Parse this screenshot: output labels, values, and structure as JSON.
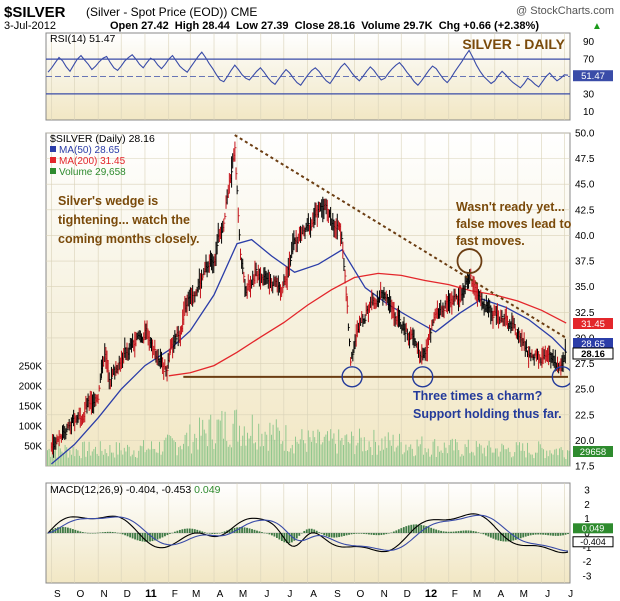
{
  "header": {
    "symbol": "$SILVER",
    "description": "(Silver - Spot Price (EOD))",
    "exchange": "CME",
    "copyright": "@ StockCharts.com",
    "date": "3-Jul-2012",
    "ohlc": "Open 27.42  High 28.44  Low 27.39  Close 28.16  Volume 29.7K  Chg +0.66 (+2.38%)",
    "ohlc_arrow": "▲"
  },
  "rsi_panel": {
    "label": "RSI(14) 51.47",
    "title": "SILVER - DAILY",
    "ticks": [
      10,
      30,
      50,
      70,
      90
    ],
    "current_label": "51.47",
    "current_value": 51.47,
    "overbought": 70,
    "oversold": 30,
    "values": [
      55,
      60,
      66,
      72,
      68,
      61,
      56,
      63,
      70,
      74,
      69,
      64,
      58,
      62,
      67,
      71,
      73,
      66,
      60,
      57,
      62,
      68,
      72,
      75,
      70,
      64,
      60,
      66,
      71,
      69,
      63,
      59,
      64,
      70,
      74,
      68,
      62,
      58,
      55,
      61,
      67,
      73,
      78,
      72,
      65,
      59,
      52,
      46,
      44,
      50,
      57,
      63,
      58,
      52,
      48,
      46,
      51,
      56,
      60,
      55,
      49,
      44,
      41,
      47,
      53,
      58,
      54,
      48,
      43,
      40,
      46,
      52,
      57,
      60,
      56,
      50,
      45,
      42,
      48,
      55,
      61,
      65,
      60,
      54,
      49,
      45,
      50,
      56,
      61,
      57,
      51,
      46,
      48,
      54,
      59,
      63,
      66,
      61,
      55,
      50,
      44,
      40,
      45,
      51,
      57,
      62,
      59,
      53,
      47,
      43,
      48,
      55,
      61,
      67,
      74,
      80,
      72,
      63,
      56,
      50,
      46,
      42,
      45,
      51,
      56,
      52,
      47,
      43,
      40,
      37,
      42,
      48,
      45,
      41,
      38,
      44,
      50,
      54,
      49,
      45,
      48,
      52,
      51.47
    ]
  },
  "price_panel": {
    "label": "$SILVER (Daily) 28.16",
    "legend": [
      {
        "text": "MA(50) 28.65",
        "color": "#2b3da8"
      },
      {
        "text": "MA(200) 31.45",
        "color": "#e3262b"
      },
      {
        "text": "Volume 29,658",
        "color": "#2e8b2e"
      }
    ],
    "price_ticks": [
      "50.0",
      "47.5",
      "45.0",
      "42.5",
      "40.0",
      "37.5",
      "35.0",
      "32.5",
      "30.0",
      "27.5",
      "25.0",
      "22.5",
      "20.0",
      "17.5"
    ],
    "volume_ticks": [
      "250K",
      "200K",
      "150K",
      "100K",
      "50K"
    ],
    "price_badges": [
      {
        "text": "31.45",
        "value": 31.45,
        "color": "#e3262b"
      },
      {
        "text": "28.65",
        "value": 28.65,
        "color": "#2b3da8"
      },
      {
        "text": "28.16",
        "value": 28.16,
        "color": "#000000"
      }
    ],
    "volume_badge": "29658",
    "annotations": {
      "wedge": [
        "Silver's wedge is",
        "tightening... watch the",
        "coming months closely."
      ],
      "false_moves": [
        "Wasn't ready yet...",
        "false moves lead to",
        "fast moves."
      ],
      "charm": [
        "Three times a charm?",
        "Support holding thus far."
      ]
    }
  },
  "macd_panel": {
    "label": "MACD(12,26,9) -0.404, -0.453",
    "label_hist": "0.049",
    "ticks": [
      "3",
      "2",
      "1",
      "0",
      "-1",
      "-2",
      "-3"
    ],
    "badges": [
      {
        "text": "0.049",
        "value": 0.049,
        "color": "#2e8b2e"
      },
      {
        "text": "-0.404",
        "value": -0.404,
        "color": "#000000"
      }
    ]
  },
  "x_axis": {
    "labels": [
      "S",
      "O",
      "N",
      "D",
      "11",
      "F",
      "M",
      "A",
      "M",
      "J",
      "J",
      "A",
      "S",
      "O",
      "N",
      "D",
      "12",
      "F",
      "M",
      "A",
      "M",
      "J",
      "J"
    ]
  },
  "chart_data": {
    "type": "line",
    "title": "$SILVER (Daily) 28.16",
    "ylim": [
      17.5,
      50.0
    ],
    "support": {
      "value": 26.2,
      "from": "2011-02",
      "to": "2012-07"
    },
    "wedge_line": {
      "from": [
        "2011-04-28",
        49.8
      ],
      "to": [
        "2012-07-03",
        30.0
      ]
    },
    "series": [
      {
        "name": "$SILVER (Daily) 28.16",
        "color": "#000000",
        "x": [
          "2010-09-01",
          "2010-09-15",
          "2010-10-01",
          "2010-10-15",
          "2010-11-01",
          "2010-11-09",
          "2010-11-17",
          "2010-12-01",
          "2010-12-15",
          "2011-01-03",
          "2011-01-15",
          "2011-01-28",
          "2011-02-15",
          "2011-03-01",
          "2011-03-15",
          "2011-04-01",
          "2011-04-15",
          "2011-04-28",
          "2011-05-05",
          "2011-05-12",
          "2011-05-25",
          "2011-06-10",
          "2011-06-28",
          "2011-07-15",
          "2011-08-01",
          "2011-08-22",
          "2011-09-01",
          "2011-09-15",
          "2011-09-26",
          "2011-10-10",
          "2011-10-25",
          "2011-11-10",
          "2011-11-25",
          "2011-12-15",
          "2011-12-29",
          "2012-01-15",
          "2012-01-31",
          "2012-02-15",
          "2012-02-28",
          "2012-03-15",
          "2012-04-01",
          "2012-04-15",
          "2012-05-01",
          "2012-05-15",
          "2012-06-01",
          "2012-06-15",
          "2012-06-28",
          "2012-07-03"
        ],
        "values": [
          19.8,
          20.8,
          21.8,
          23.2,
          24.5,
          28.6,
          25.9,
          28.2,
          29.2,
          30.6,
          28.5,
          27.0,
          30.8,
          34.4,
          35.6,
          38.0,
          42.2,
          48.6,
          38.5,
          35.0,
          36.2,
          36.2,
          34.6,
          39.4,
          40.5,
          43.2,
          41.6,
          40.0,
          28.0,
          31.5,
          33.9,
          34.2,
          31.8,
          30.0,
          27.9,
          32.0,
          33.6,
          33.8,
          36.0,
          33.0,
          32.5,
          31.6,
          30.5,
          28.3,
          27.7,
          27.9,
          26.7,
          28.16
        ]
      },
      {
        "name": "MA(50) 28.65",
        "color": "#2b3da8",
        "x": [
          "2010-09-01",
          "2010-10-01",
          "2010-11-01",
          "2010-12-01",
          "2011-01-01",
          "2011-02-01",
          "2011-03-01",
          "2011-04-01",
          "2011-05-01",
          "2011-05-20",
          "2011-06-15",
          "2011-07-15",
          "2011-08-15",
          "2011-09-15",
          "2011-10-15",
          "2011-11-15",
          "2011-12-15",
          "2012-01-15",
          "2012-02-15",
          "2012-03-15",
          "2012-04-15",
          "2012-05-15",
          "2012-06-15",
          "2012-07-03"
        ],
        "values": [
          17.7,
          19.6,
          22.2,
          25.0,
          27.3,
          28.8,
          30.7,
          34.2,
          39.2,
          39.6,
          38.0,
          36.4,
          37.2,
          38.6,
          34.9,
          33.2,
          31.9,
          30.6,
          32.4,
          33.8,
          33.0,
          31.8,
          30.0,
          28.65
        ]
      },
      {
        "name": "MA(200) 31.45",
        "color": "#e3262b",
        "x": [
          "2011-02-01",
          "2011-03-01",
          "2011-04-01",
          "2011-05-01",
          "2011-06-01",
          "2011-07-01",
          "2011-08-01",
          "2011-09-01",
          "2011-10-01",
          "2011-11-01",
          "2011-12-01",
          "2012-01-01",
          "2012-02-01",
          "2012-03-01",
          "2012-04-01",
          "2012-05-01",
          "2012-06-01",
          "2012-07-03"
        ],
        "values": [
          26.3,
          26.6,
          27.3,
          28.6,
          30.1,
          31.5,
          33.2,
          34.7,
          35.9,
          36.3,
          36.1,
          35.6,
          35.2,
          34.6,
          34.2,
          33.6,
          32.7,
          31.45
        ]
      }
    ]
  }
}
